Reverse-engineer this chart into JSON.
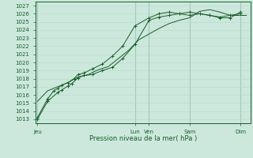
{
  "title": "Pression niveau de la mer( hPa )",
  "background_color": "#cce8dc",
  "grid_color_minor": "#b8d8cc",
  "grid_color_major": "#90b8a8",
  "line_color": "#1a5c2a",
  "ylim": [
    1012.5,
    1027.5
  ],
  "yticks": [
    1013,
    1014,
    1015,
    1016,
    1017,
    1018,
    1019,
    1020,
    1021,
    1022,
    1023,
    1024,
    1025,
    1026,
    1027
  ],
  "xtick_labels": [
    "Jeu",
    "Lun",
    "Ven",
    "Sam",
    "Dim"
  ],
  "xtick_positions": [
    0,
    4.8,
    5.5,
    7.5,
    10.0
  ],
  "xlim": [
    -0.1,
    10.5
  ],
  "vlines": [
    0,
    4.8,
    5.5,
    7.5,
    10.0
  ],
  "series1_x": [
    0.0,
    0.5,
    1.0,
    1.2,
    1.5,
    1.7,
    2.0,
    2.3,
    2.7,
    3.2,
    3.7,
    4.2,
    4.8,
    5.5,
    6.0,
    6.5,
    7.0,
    7.5,
    8.0,
    8.5,
    9.0,
    9.5,
    10.0
  ],
  "series1_y": [
    1013.0,
    1015.2,
    1016.3,
    1016.6,
    1017.1,
    1017.4,
    1018.1,
    1018.4,
    1018.5,
    1019.0,
    1019.4,
    1020.5,
    1022.2,
    1025.2,
    1025.6,
    1025.8,
    1026.0,
    1025.8,
    1026.0,
    1025.8,
    1025.5,
    1025.5,
    1026.2
  ],
  "series2_x": [
    0.0,
    0.5,
    0.8,
    1.0,
    1.2,
    1.5,
    1.8,
    2.0,
    2.3,
    2.7,
    3.2,
    3.7,
    4.2,
    4.8,
    5.5,
    6.0,
    6.5,
    7.0,
    7.5,
    8.0,
    8.5,
    9.0,
    9.5,
    10.0
  ],
  "series2_y": [
    1013.2,
    1015.5,
    1016.5,
    1016.8,
    1017.2,
    1017.5,
    1018.0,
    1018.5,
    1018.7,
    1019.2,
    1019.8,
    1020.8,
    1022.0,
    1024.5,
    1025.5,
    1026.0,
    1026.2,
    1026.0,
    1026.2,
    1026.0,
    1025.8,
    1025.6,
    1025.8,
    1026.0
  ],
  "series3_x": [
    0.0,
    0.5,
    1.0,
    1.5,
    2.0,
    2.5,
    3.0,
    3.5,
    4.0,
    4.5,
    5.0,
    5.5,
    6.0,
    6.5,
    7.0,
    7.5,
    8.0,
    8.5,
    9.0,
    9.5,
    10.0,
    10.3
  ],
  "series3_y": [
    1015.2,
    1016.5,
    1017.0,
    1017.5,
    1018.2,
    1018.5,
    1019.1,
    1019.5,
    1020.5,
    1021.5,
    1022.8,
    1023.5,
    1024.2,
    1024.8,
    1025.2,
    1025.5,
    1026.3,
    1026.5,
    1026.2,
    1025.8,
    1025.8,
    1025.8
  ]
}
